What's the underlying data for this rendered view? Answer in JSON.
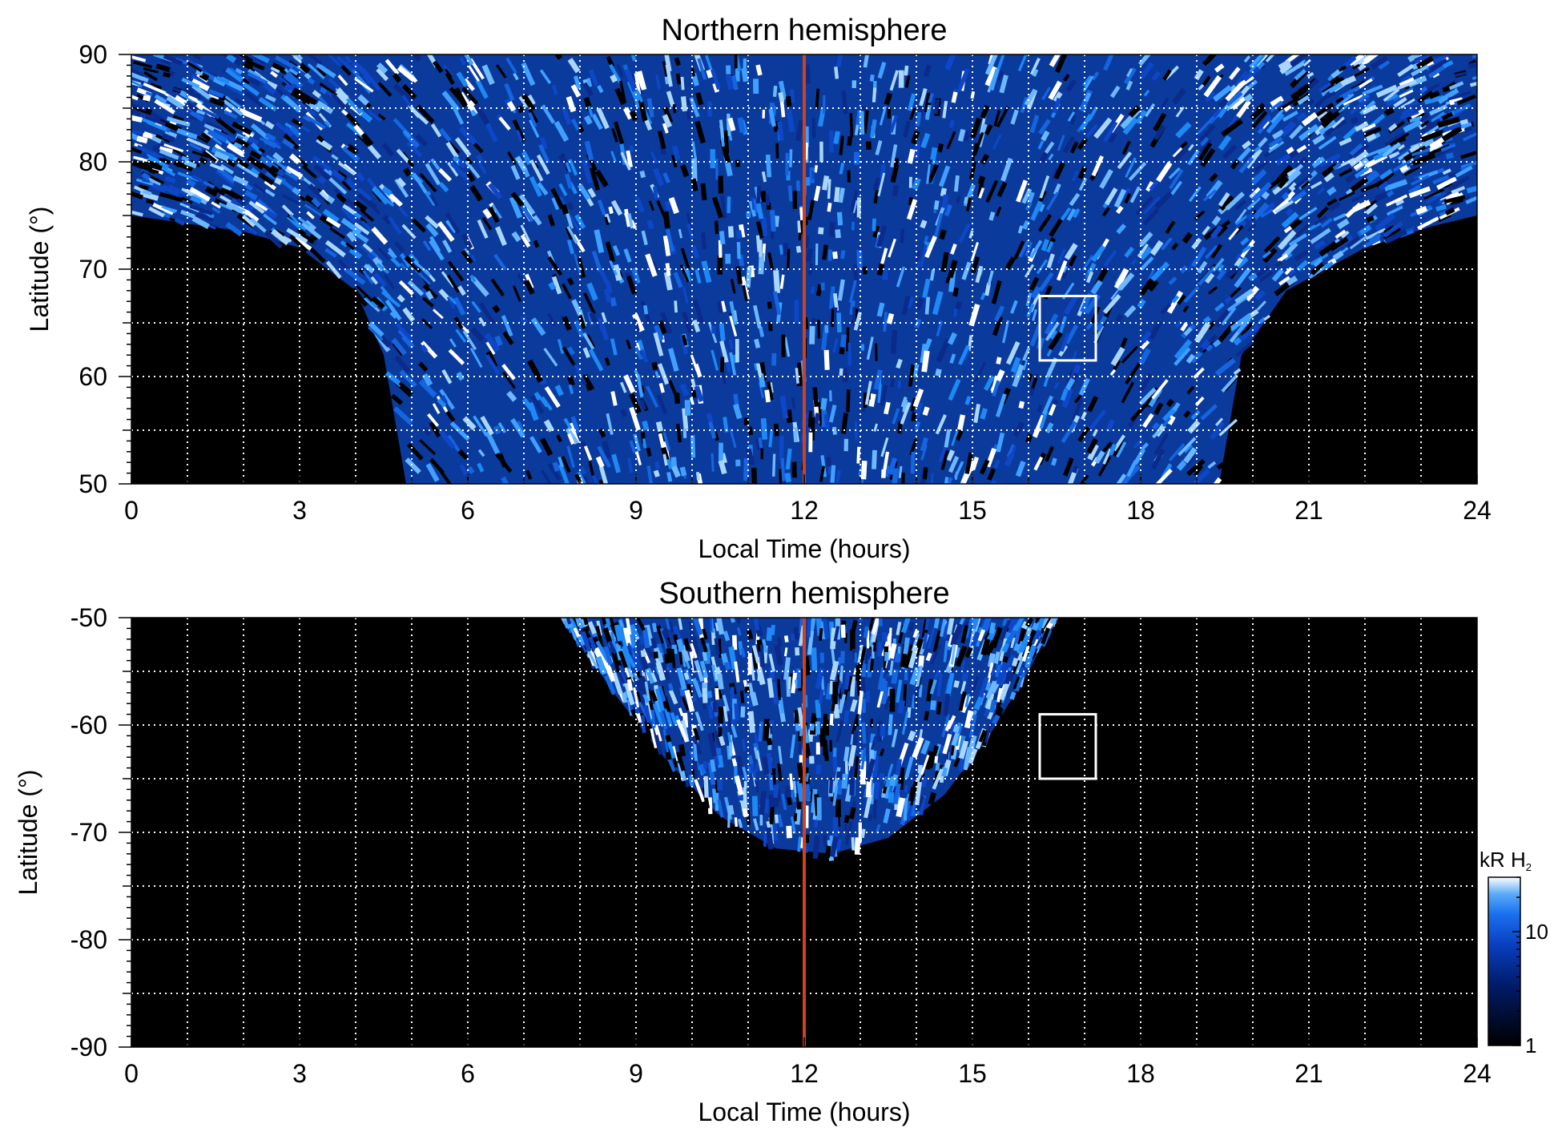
{
  "chart_data": [
    {
      "type": "heatmap",
      "title": "Northern hemisphere",
      "xlabel": "Local Time (hours)",
      "ylabel": "Latitude (°)",
      "xlim": [
        0,
        24
      ],
      "ylim": [
        50,
        90
      ],
      "xticks": [
        0,
        3,
        6,
        9,
        12,
        15,
        18,
        21,
        24
      ],
      "yticks": [
        50,
        60,
        70,
        80,
        90
      ],
      "grid": true,
      "reference_line_x": 12,
      "box": {
        "x": [
          16.2,
          17.2
        ],
        "y": [
          61.5,
          67.5
        ]
      },
      "coverage_edge": [
        {
          "lt": 0.0,
          "lat": 75.0
        },
        {
          "lt": 2.0,
          "lat": 73.5
        },
        {
          "lt": 3.0,
          "lat": 72.0
        },
        {
          "lt": 4.0,
          "lat": 68.0
        },
        {
          "lt": 4.5,
          "lat": 62.0
        },
        {
          "lt": 4.9,
          "lat": 50.0
        },
        {
          "lt": 19.4,
          "lat": 50.0
        },
        {
          "lt": 19.8,
          "lat": 62.0
        },
        {
          "lt": 20.6,
          "lat": 68.0
        },
        {
          "lt": 22.0,
          "lat": 72.0
        },
        {
          "lt": 23.2,
          "lat": 74.0
        },
        {
          "lt": 24.0,
          "lat": 75.0
        }
      ]
    },
    {
      "type": "heatmap",
      "title": "Southern hemisphere",
      "xlabel": "Local Time (hours)",
      "ylabel": "Latitude (°)",
      "xlim": [
        0,
        24
      ],
      "ylim": [
        -90,
        -50
      ],
      "xticks": [
        0,
        3,
        6,
        9,
        12,
        15,
        18,
        21,
        24
      ],
      "yticks": [
        -50,
        -60,
        -70,
        -80,
        -90
      ],
      "grid": true,
      "reference_line_x": 12,
      "box": {
        "x": [
          16.2,
          17.2
        ],
        "y": [
          -65,
          -59
        ]
      },
      "coverage_edge": [
        {
          "lt": 7.7,
          "lat": -50.0
        },
        {
          "lt": 8.6,
          "lat": -57.0
        },
        {
          "lt": 9.5,
          "lat": -63.0
        },
        {
          "lt": 10.5,
          "lat": -68.5
        },
        {
          "lt": 11.5,
          "lat": -71.5
        },
        {
          "lt": 12.5,
          "lat": -72.0
        },
        {
          "lt": 13.5,
          "lat": -70.5
        },
        {
          "lt": 14.5,
          "lat": -66.5
        },
        {
          "lt": 15.3,
          "lat": -61.0
        },
        {
          "lt": 16.0,
          "lat": -55.0
        },
        {
          "lt": 16.5,
          "lat": -50.0
        }
      ]
    }
  ],
  "colorbar": {
    "label": "kR H",
    "subscript": "2",
    "scale": "log",
    "range": [
      1,
      30
    ],
    "tick_labels": [
      "10",
      "1"
    ],
    "tick_values": [
      10,
      1
    ],
    "colors": [
      "#000000",
      "#001a66",
      "#0a3fc0",
      "#1a70f0",
      "#5aaaf8",
      "#ffffff"
    ]
  }
}
